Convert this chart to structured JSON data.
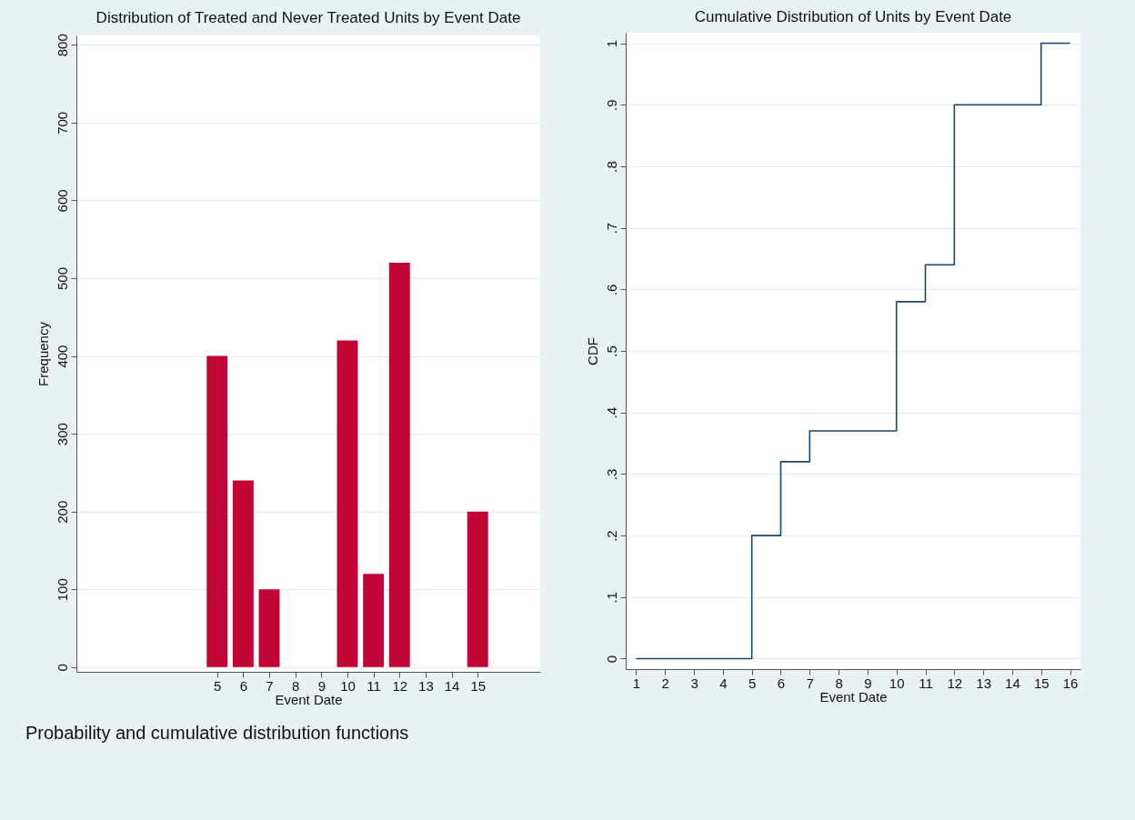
{
  "chart_data": [
    {
      "type": "bar",
      "title": "Distribution of Treated and Never Treated Units by Event Date",
      "xlabel": "Event Date",
      "ylabel": "Frequency",
      "x": [
        5,
        6,
        7,
        10,
        11,
        12,
        15
      ],
      "values": [
        400,
        240,
        100,
        420,
        120,
        520,
        200
      ],
      "color": "#c10534",
      "xlim": [
        -0.4,
        17.4
      ],
      "xticks": [
        5,
        6,
        7,
        8,
        9,
        10,
        11,
        12,
        13,
        14,
        15
      ],
      "ylim": [
        -6,
        812
      ],
      "yticks": [
        0,
        100,
        200,
        300,
        400,
        500,
        600,
        700,
        800
      ],
      "grid": "y",
      "annotations": [
        "Probability and cumulative distribution functions"
      ]
    },
    {
      "type": "step",
      "title": "Cumulative Distribution of Units by Event Date",
      "xlabel": "Event Date",
      "ylabel": "CDF",
      "x": [
        1,
        2,
        3,
        4,
        5,
        6,
        7,
        8,
        9,
        10,
        11,
        12,
        13,
        14,
        15,
        16
      ],
      "values": [
        0,
        0,
        0,
        0,
        0.2,
        0.32,
        0.37,
        0.37,
        0.37,
        0.58,
        0.64,
        0.9,
        0.9,
        0.9,
        1,
        1
      ],
      "color": "#1a476f",
      "xlim": [
        0.64,
        16.36
      ],
      "xticks": [
        1,
        2,
        3,
        4,
        5,
        6,
        7,
        8,
        9,
        10,
        11,
        12,
        13,
        14,
        15,
        16
      ],
      "ylim": [
        -0.017,
        1.017
      ],
      "yticks": [
        0,
        {
          "value": 0.1,
          "label": ".1"
        },
        {
          "value": 0.2,
          "label": ".2"
        },
        {
          "value": 0.3,
          "label": ".3"
        },
        {
          "value": 0.4,
          "label": ".4"
        },
        {
          "value": 0.5,
          "label": ".5"
        },
        {
          "value": 0.6,
          "label": ".6"
        },
        {
          "value": 0.7,
          "label": ".7"
        },
        {
          "value": 0.8,
          "label": ".8"
        },
        {
          "value": 0.9,
          "label": ".9"
        },
        1
      ],
      "grid": "y"
    }
  ]
}
